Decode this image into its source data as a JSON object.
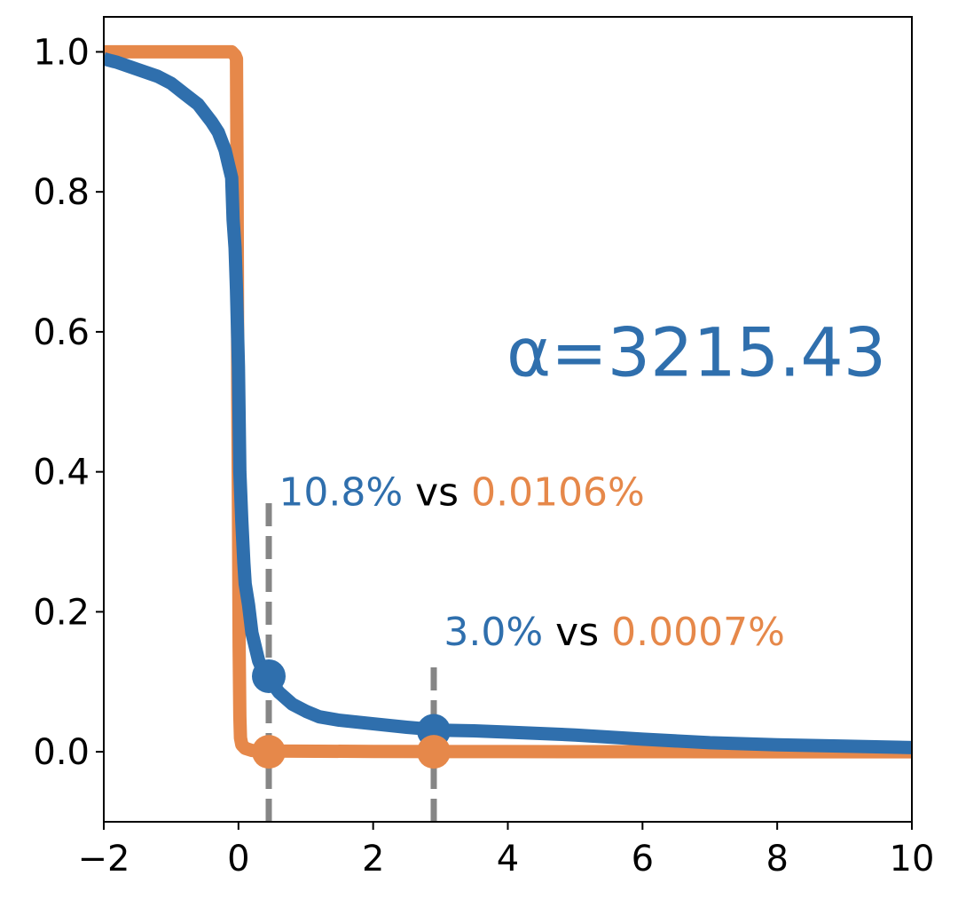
{
  "chart_data": {
    "type": "line",
    "title": "",
    "xlabel": "",
    "ylabel": "",
    "xlim": [
      -2,
      10
    ],
    "ylim": [
      -0.1,
      1.05
    ],
    "grid": false,
    "x_ticks": [
      -2,
      0,
      2,
      4,
      6,
      8,
      10
    ],
    "x_tick_labels": [
      "−2",
      "0",
      "2",
      "4",
      "6",
      "8",
      "10"
    ],
    "y_ticks": [
      0.0,
      0.2,
      0.4,
      0.6,
      0.8,
      1.0
    ],
    "y_tick_labels": [
      "0.0",
      "0.2",
      "0.4",
      "0.6",
      "0.8",
      "1.0"
    ],
    "series": [
      {
        "color": "#e6884a",
        "x": [
          -2,
          -0.1,
          -0.05,
          -0.03,
          -0.02,
          -0.01,
          0.0,
          0.01,
          0.02,
          0.03,
          0.05,
          0.1,
          0.2,
          0.5,
          2,
          4,
          6,
          8,
          10
        ],
        "y": [
          1.0,
          1.0,
          0.995,
          0.99,
          0.8,
          0.5,
          0.35,
          0.15,
          0.05,
          0.02,
          0.01,
          0.005,
          0.002,
          0.001,
          0.0005,
          0.0003,
          0.0002,
          0.0001,
          0.0001
        ]
      },
      {
        "color": "#2f6fad",
        "x": [
          -2,
          -1.8,
          -1.5,
          -1.2,
          -1.0,
          -0.8,
          -0.6,
          -0.4,
          -0.3,
          -0.2,
          -0.15,
          -0.1,
          -0.08,
          -0.05,
          -0.03,
          0.0,
          0.02,
          0.05,
          0.08,
          0.1,
          0.15,
          0.2,
          0.3,
          0.4,
          0.5,
          0.6,
          0.8,
          1.0,
          1.2,
          1.5,
          2.0,
          2.5,
          3.0,
          3.5,
          4.0,
          5.0,
          6.0,
          7.0,
          8.0,
          9.0,
          10.0
        ],
        "y": [
          0.99,
          0.985,
          0.975,
          0.965,
          0.955,
          0.94,
          0.925,
          0.9,
          0.885,
          0.86,
          0.84,
          0.82,
          0.76,
          0.72,
          0.66,
          0.55,
          0.4,
          0.33,
          0.27,
          0.24,
          0.21,
          0.17,
          0.13,
          0.108,
          0.098,
          0.085,
          0.068,
          0.058,
          0.05,
          0.045,
          0.04,
          0.035,
          0.031,
          0.03,
          0.028,
          0.024,
          0.018,
          0.013,
          0.01,
          0.008,
          0.006
        ]
      }
    ],
    "markers": [
      {
        "x": 0.45,
        "y": 0.108,
        "color": "#2f6fad"
      },
      {
        "x": 0.45,
        "y": 0.0,
        "color": "#e6884a"
      },
      {
        "x": 2.9,
        "y": 0.03,
        "color": "#2f6fad"
      },
      {
        "x": 2.9,
        "y": 0.0,
        "color": "#e6884a"
      }
    ],
    "vlines": [
      {
        "x": 0.45,
        "y0": -0.1,
        "y1": 0.36,
        "color": "#808080"
      },
      {
        "x": 2.9,
        "y0": -0.1,
        "y1": 0.13,
        "color": "#808080"
      }
    ],
    "annotations": {
      "alpha": {
        "text": "α=3215.43",
        "color": "#2f6fad",
        "x": 6.8,
        "y": 0.58
      },
      "first": {
        "x": 0.6,
        "y": 0.37,
        "a": "10.8%",
        "vs": " vs ",
        "b": "0.0106%",
        "a_color": "#2f6fad",
        "b_color": "#e6884a"
      },
      "second": {
        "x": 3.05,
        "y": 0.17,
        "a": "3.0%",
        "vs": " vs ",
        "b": "0.0007%",
        "a_color": "#2f6fad",
        "b_color": "#e6884a"
      }
    }
  }
}
